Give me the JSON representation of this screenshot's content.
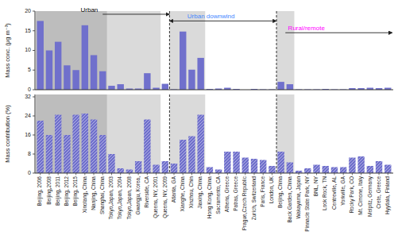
{
  "chart_data": [
    {
      "type": "bar",
      "y_label": "Mass conc. (μg m⁻³)",
      "categories": [
        "Beijing, 2006",
        "Beijing,2008",
        "Beijing, 2011",
        "Beijing, 2012",
        "Beijing, 2015",
        "Xinotang, China",
        "Nanjing, China",
        "Shanghai, China",
        "Tokyo,Japan, 2003",
        "Tokyo,Japan, 2004",
        "Tokyo,Japan, 2008",
        "Gwangju, Korea,",
        "Riverside, CA",
        "Queens, NY, 2001",
        "Queens, NY, 2009",
        "Atlanta, GA",
        "Xianghe, China",
        "Xinzhou, Chin",
        "Jiaxing, China",
        "Hong Kong, China",
        "Sacramento, CA",
        "Athens, Greece",
        "Patras, Greece",
        "Prague,Czech Republic",
        "Zurich, Switzerland",
        "Paris, France",
        "London, UK",
        "Beijing, China",
        "Back Garden, China",
        "Wakayama, Japan",
        "Pinnacle State Park, NY",
        "BNL, NY",
        "Look Rock, TN",
        "Centreville, AL",
        "Yorkville, GA",
        "Rocky Park, CO",
        "Mt. Cimone, Italy",
        "Melpitz, Germany",
        "Crete, Greece",
        "Hyytiala, Finland"
      ],
      "values": [
        17.5,
        10.0,
        12.2,
        6.2,
        5.0,
        16.4,
        8.8,
        4.7,
        1.0,
        1.4,
        0.3,
        0.3,
        4.2,
        0.5,
        1.5,
        0.1,
        14.8,
        5.1,
        8.1,
        0.2,
        0.3,
        0.5,
        0.2,
        0.0,
        0.2,
        0.1,
        0.1,
        2.0,
        1.4,
        0.1,
        0.1,
        0.1,
        0.2,
        0.1,
        0.1,
        0.4,
        0.4,
        0.5,
        0.4,
        0.5
      ],
      "color": "#7070cc",
      "ylim": [
        0,
        20
      ],
      "yticks": [
        0,
        5,
        10,
        15,
        20
      ],
      "grid": false,
      "tick_labels": "y",
      "annotations": [
        {
          "text": "Urban",
          "color": "black"
        },
        {
          "text": "Urban downwind",
          "color": "#4488ff"
        },
        {
          "text": "Rural/remote",
          "color": "magenta"
        }
      ]
    },
    {
      "type": "bar",
      "y_label": "Mass contribution (%)",
      "categories": [
        "Beijing, 2006",
        "Beijing,2008",
        "Beijing, 2011",
        "Beijing, 2012",
        "Beijing, 2015",
        "Xinotang, China",
        "Nanjing, China",
        "Shanghai, China",
        "Tokyo,Japan, 2003",
        "Tokyo,Japan, 2004",
        "Tokyo,Japan, 2008",
        "Gwangju, Korea,",
        "Riverside, CA",
        "Queens, NY, 2001",
        "Queens, NY, 2009",
        "Atlanta, GA",
        "Xianghe, China",
        "Xinzhou, Chin",
        "Jiaxing, China",
        "Hong Kong, China",
        "Sacramento, CA",
        "Athens, Greece",
        "Patras, Greece",
        "Prague,Czech Republic",
        "Zurich, Switzerland",
        "Paris, France",
        "London, UK",
        "Beijing, China",
        "Back Garden, China",
        "Wakayama, Japan",
        "Pinnacle State Park, NY",
        "BNL, NY",
        "Look Rock, TN",
        "Centreville, AL",
        "Yorkville, GA",
        "Rocky Park, CO",
        "Mt. Cimone, Italy",
        "Melpitz, Germany",
        "Crete, Greece",
        "Hyytiala, Finland"
      ],
      "values": [
        22.0,
        16.0,
        24.5,
        16.0,
        24.5,
        25.0,
        22.5,
        16.0,
        8.0,
        2.0,
        1.5,
        5.0,
        22.5,
        3.5,
        5.0,
        4.0,
        14.0,
        15.5,
        24.5,
        2.5,
        1.5,
        9.0,
        9.0,
        6.5,
        6.0,
        5.5,
        3.0,
        9.0,
        4.5,
        1.0,
        2.0,
        3.5,
        3.0,
        2.5,
        2.5,
        6.5,
        7.0,
        3.0,
        5.0,
        3.5
      ],
      "color": "#7070cc",
      "ylim": [
        0,
        33
      ],
      "yticks": [
        0,
        8,
        16,
        24,
        32
      ],
      "grid": false
    }
  ]
}
